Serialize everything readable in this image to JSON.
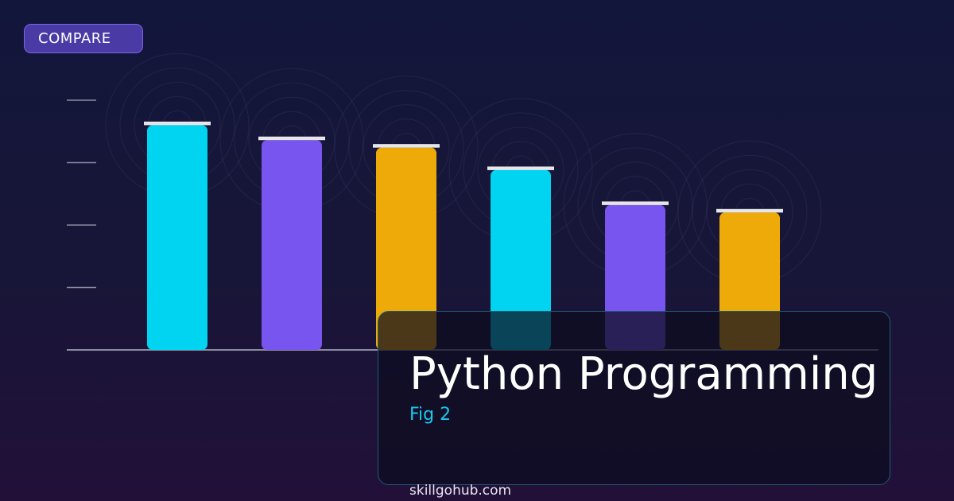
{
  "badge": {
    "label": "COMPARE"
  },
  "card": {
    "title": "Python Programming",
    "subtitle": "Fig 2"
  },
  "footer": {
    "domain": "skillgohub.com"
  },
  "colors": {
    "cyan": "#00d4f0",
    "purple": "#7755ee",
    "gold": "#eeaa08",
    "cap": "#e6e6ea",
    "axis": "#8a8aa0",
    "card_border": "#1f5b73",
    "badge_bg": "#4a3aa6"
  },
  "chart_data": {
    "type": "bar",
    "title": "",
    "xlabel": "",
    "ylabel": "",
    "categories": [
      "",
      "",
      "",
      "",
      "",
      ""
    ],
    "values": [
      90,
      84,
      81,
      72,
      58,
      55
    ],
    "bar_colors": [
      "cyan",
      "purple",
      "gold",
      "cyan",
      "purple",
      "gold"
    ],
    "ylim": [
      0,
      100
    ],
    "yticks": [
      0,
      25,
      50,
      75,
      100
    ],
    "tick_labels_shown": false,
    "grid": false,
    "legend": "none"
  }
}
